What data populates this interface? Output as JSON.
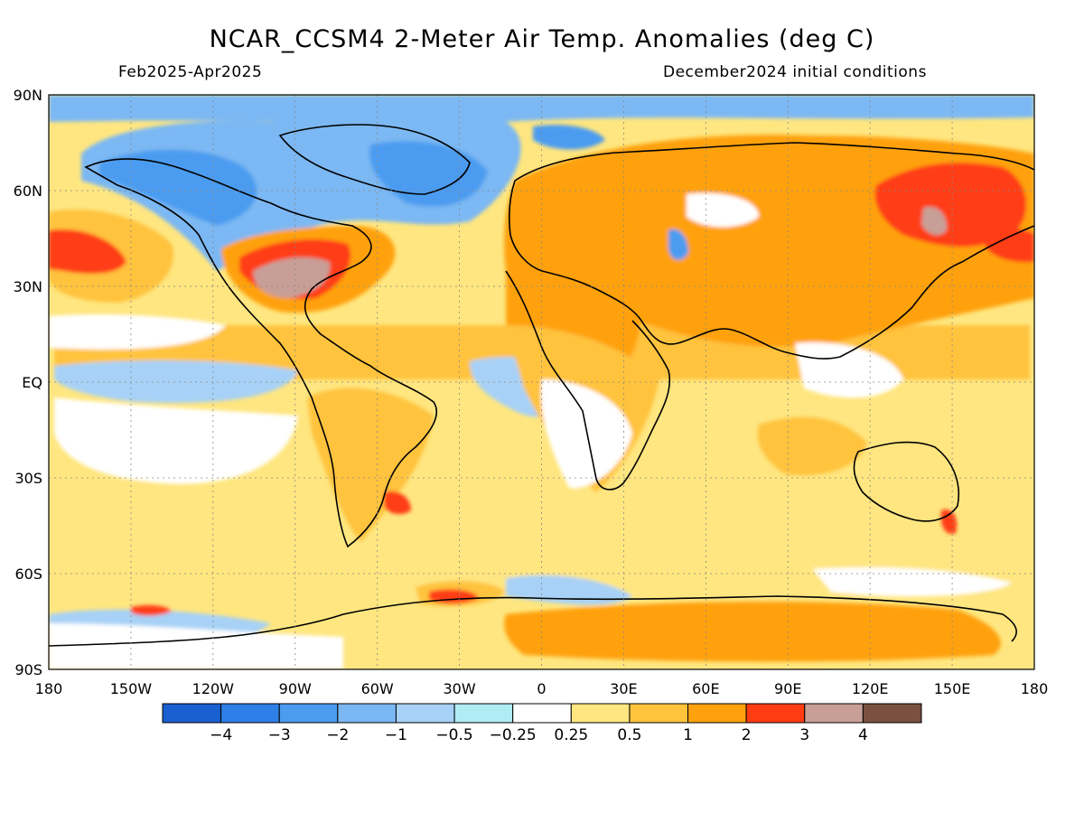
{
  "title": "NCAR_CCSM4 2-Meter Air Temp. Anomalies (deg C)",
  "valid_period": "Feb2025-Apr2025",
  "init_conditions": "December2024 initial conditions",
  "map": {
    "lat_labels": [
      "90N",
      "60N",
      "30N",
      "EQ",
      "30S",
      "60S",
      "90S"
    ],
    "lat_values": [
      90,
      60,
      30,
      0,
      -30,
      -60,
      -90
    ],
    "lon_labels": [
      "180",
      "150W",
      "120W",
      "90W",
      "60W",
      "30W",
      "0",
      "30E",
      "60E",
      "90E",
      "120E",
      "150E",
      "180"
    ],
    "lon_values": [
      -180,
      -150,
      -120,
      -90,
      -60,
      -30,
      0,
      30,
      60,
      90,
      120,
      150,
      180
    ],
    "grid": "dotted"
  },
  "colorbar": {
    "colors": [
      "#1a5fd0",
      "#2f7fe8",
      "#4b9cf0",
      "#7bb8f3",
      "#a7d1f6",
      "#b0ecf4",
      "#ffffff",
      "#ffe680",
      "#ffc33c",
      "#ffa10d",
      "#ff3c12",
      "#c79f96",
      "#7a5040"
    ],
    "labels": [
      "-4",
      "-3",
      "-2",
      "-1",
      "-0.5",
      "-0.25",
      "0.25",
      "0.5",
      "1",
      "2",
      "3",
      "4"
    ]
  },
  "regions": [
    {
      "id": "arctic-strip",
      "color": "#7bb8f3"
    },
    {
      "id": "canada-greenland",
      "color": "#7bb8f3"
    },
    {
      "id": "greenland-core",
      "color": "#4b9cf0"
    },
    {
      "id": "e-tropical-pacific",
      "color": "#a7d1f6"
    },
    {
      "id": "n-pacific-warm",
      "color": "#ffc33c"
    },
    {
      "id": "n-pacific-hot",
      "color": "#ff3c12"
    },
    {
      "id": "usa-warm",
      "color": "#ffa10d"
    },
    {
      "id": "usa-hot",
      "color": "#ff3c12"
    },
    {
      "id": "usa-core",
      "color": "#c79f96"
    },
    {
      "id": "eurasia-warm",
      "color": "#ffa10d"
    },
    {
      "id": "siberia-hot",
      "color": "#ff3c12"
    },
    {
      "id": "siberia-core",
      "color": "#c79f96"
    },
    {
      "id": "africa-warm",
      "color": "#ffc33c"
    },
    {
      "id": "s-america-warm",
      "color": "#ffc33c"
    },
    {
      "id": "southern-ocean-pale",
      "color": "#ffe680"
    },
    {
      "id": "antarctica-warm",
      "color": "#ffa10d"
    },
    {
      "id": "s-atlantic-hot",
      "color": "#ff3c12"
    },
    {
      "id": "caspian-cold",
      "color": "#4b9cf0"
    }
  ]
}
